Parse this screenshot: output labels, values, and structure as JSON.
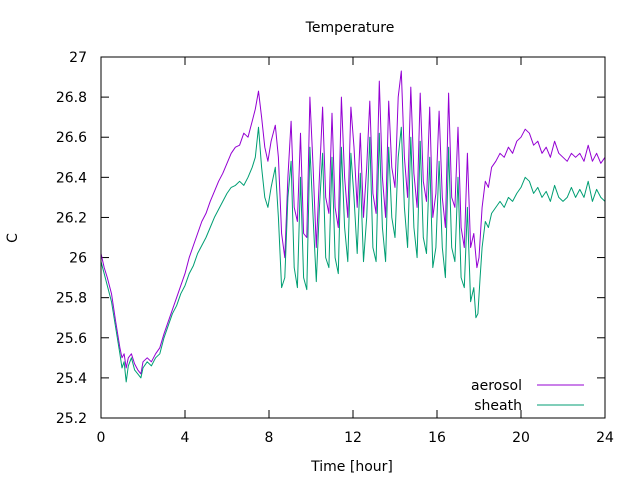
{
  "chart_data": {
    "type": "line",
    "title": "Temperature",
    "xlabel": "Time [hour]",
    "ylabel": "C",
    "xlim": [
      0,
      24
    ],
    "ylim": [
      25.2,
      27
    ],
    "xticks": [
      0,
      4,
      8,
      12,
      16,
      20,
      24
    ],
    "yticks": [
      25.2,
      25.4,
      25.6,
      25.8,
      26,
      26.2,
      26.4,
      26.6,
      26.8,
      27
    ],
    "ytick_labels": [
      "25.2",
      "25.4",
      "25.6",
      "25.8",
      "26",
      "26.2",
      "26.4",
      "26.6",
      "26.8",
      "27"
    ],
    "grid": false,
    "legend_position": "bottom-right",
    "series": [
      {
        "name": "aerosol",
        "color": "#9400d3",
        "points": [
          [
            0,
            26.02
          ],
          [
            0.15,
            25.95
          ],
          [
            0.3,
            25.9
          ],
          [
            0.5,
            25.82
          ],
          [
            0.7,
            25.68
          ],
          [
            0.9,
            25.55
          ],
          [
            1.0,
            25.5
          ],
          [
            1.1,
            25.52
          ],
          [
            1.2,
            25.45
          ],
          [
            1.3,
            25.5
          ],
          [
            1.45,
            25.52
          ],
          [
            1.6,
            25.47
          ],
          [
            1.75,
            25.44
          ],
          [
            1.9,
            25.42
          ],
          [
            2.0,
            25.48
          ],
          [
            2.2,
            25.5
          ],
          [
            2.4,
            25.48
          ],
          [
            2.6,
            25.52
          ],
          [
            2.8,
            25.55
          ],
          [
            3.0,
            25.62
          ],
          [
            3.2,
            25.68
          ],
          [
            3.4,
            25.74
          ],
          [
            3.6,
            25.8
          ],
          [
            3.8,
            25.86
          ],
          [
            4.0,
            25.92
          ],
          [
            4.2,
            26.0
          ],
          [
            4.4,
            26.06
          ],
          [
            4.6,
            26.12
          ],
          [
            4.8,
            26.18
          ],
          [
            5.0,
            26.22
          ],
          [
            5.2,
            26.28
          ],
          [
            5.4,
            26.33
          ],
          [
            5.6,
            26.38
          ],
          [
            5.8,
            26.42
          ],
          [
            6.0,
            26.47
          ],
          [
            6.2,
            26.52
          ],
          [
            6.4,
            26.55
          ],
          [
            6.6,
            26.56
          ],
          [
            6.8,
            26.62
          ],
          [
            7.0,
            26.6
          ],
          [
            7.2,
            26.68
          ],
          [
            7.35,
            26.74
          ],
          [
            7.5,
            26.83
          ],
          [
            7.65,
            26.7
          ],
          [
            7.8,
            26.55
          ],
          [
            7.95,
            26.48
          ],
          [
            8.1,
            26.58
          ],
          [
            8.3,
            26.66
          ],
          [
            8.45,
            26.5
          ],
          [
            8.6,
            26.12
          ],
          [
            8.75,
            26.0
          ],
          [
            8.9,
            26.4
          ],
          [
            9.05,
            26.68
          ],
          [
            9.2,
            26.25
          ],
          [
            9.35,
            26.18
          ],
          [
            9.5,
            26.62
          ],
          [
            9.65,
            26.12
          ],
          [
            9.8,
            26.1
          ],
          [
            9.95,
            26.8
          ],
          [
            10.1,
            26.45
          ],
          [
            10.25,
            26.05
          ],
          [
            10.4,
            26.4
          ],
          [
            10.55,
            26.75
          ],
          [
            10.7,
            26.3
          ],
          [
            10.85,
            26.22
          ],
          [
            11.0,
            26.72
          ],
          [
            11.15,
            26.25
          ],
          [
            11.3,
            26.15
          ],
          [
            11.45,
            26.8
          ],
          [
            11.6,
            26.4
          ],
          [
            11.75,
            26.2
          ],
          [
            11.9,
            26.75
          ],
          [
            12.05,
            26.55
          ],
          [
            12.2,
            26.25
          ],
          [
            12.35,
            26.62
          ],
          [
            12.5,
            26.2
          ],
          [
            12.65,
            26.45
          ],
          [
            12.8,
            26.78
          ],
          [
            12.95,
            26.32
          ],
          [
            13.1,
            26.22
          ],
          [
            13.25,
            26.88
          ],
          [
            13.4,
            26.4
          ],
          [
            13.55,
            26.2
          ],
          [
            13.7,
            26.78
          ],
          [
            13.85,
            26.45
          ],
          [
            14.0,
            26.35
          ],
          [
            14.15,
            26.8
          ],
          [
            14.3,
            26.93
          ],
          [
            14.45,
            26.5
          ],
          [
            14.6,
            26.3
          ],
          [
            14.75,
            26.85
          ],
          [
            14.9,
            26.42
          ],
          [
            15.05,
            26.25
          ],
          [
            15.2,
            26.82
          ],
          [
            15.35,
            26.38
          ],
          [
            15.5,
            26.28
          ],
          [
            15.65,
            26.75
          ],
          [
            15.8,
            26.2
          ],
          [
            15.95,
            26.32
          ],
          [
            16.1,
            26.73
          ],
          [
            16.25,
            26.3
          ],
          [
            16.4,
            26.15
          ],
          [
            16.55,
            26.82
          ],
          [
            16.7,
            26.3
          ],
          [
            16.85,
            26.25
          ],
          [
            17.0,
            26.65
          ],
          [
            17.15,
            26.15
          ],
          [
            17.3,
            26.05
          ],
          [
            17.45,
            26.52
          ],
          [
            17.6,
            26.05
          ],
          [
            17.75,
            26.12
          ],
          [
            17.9,
            25.95
          ],
          [
            18.0,
            26.0
          ],
          [
            18.15,
            26.25
          ],
          [
            18.3,
            26.38
          ],
          [
            18.45,
            26.35
          ],
          [
            18.6,
            26.45
          ],
          [
            18.8,
            26.48
          ],
          [
            19.0,
            26.52
          ],
          [
            19.2,
            26.5
          ],
          [
            19.4,
            26.55
          ],
          [
            19.6,
            26.52
          ],
          [
            19.8,
            26.58
          ],
          [
            20.0,
            26.6
          ],
          [
            20.2,
            26.64
          ],
          [
            20.4,
            26.62
          ],
          [
            20.6,
            26.56
          ],
          [
            20.8,
            26.58
          ],
          [
            21.0,
            26.52
          ],
          [
            21.2,
            26.55
          ],
          [
            21.4,
            26.5
          ],
          [
            21.6,
            26.58
          ],
          [
            21.8,
            26.52
          ],
          [
            22.0,
            26.5
          ],
          [
            22.2,
            26.48
          ],
          [
            22.4,
            26.52
          ],
          [
            22.6,
            26.5
          ],
          [
            22.8,
            26.52
          ],
          [
            23.0,
            26.48
          ],
          [
            23.2,
            26.56
          ],
          [
            23.4,
            26.48
          ],
          [
            23.6,
            26.52
          ],
          [
            23.8,
            26.47
          ],
          [
            24.0,
            26.5
          ]
        ]
      },
      {
        "name": "sheath",
        "color": "#009e73",
        "points": [
          [
            0,
            25.98
          ],
          [
            0.15,
            25.92
          ],
          [
            0.3,
            25.86
          ],
          [
            0.5,
            25.78
          ],
          [
            0.7,
            25.65
          ],
          [
            0.9,
            25.52
          ],
          [
            1.0,
            25.45
          ],
          [
            1.1,
            25.48
          ],
          [
            1.2,
            25.38
          ],
          [
            1.3,
            25.46
          ],
          [
            1.45,
            25.5
          ],
          [
            1.6,
            25.44
          ],
          [
            1.75,
            25.42
          ],
          [
            1.9,
            25.4
          ],
          [
            2.0,
            25.45
          ],
          [
            2.2,
            25.48
          ],
          [
            2.4,
            25.46
          ],
          [
            2.6,
            25.5
          ],
          [
            2.8,
            25.52
          ],
          [
            3.0,
            25.6
          ],
          [
            3.2,
            25.66
          ],
          [
            3.4,
            25.72
          ],
          [
            3.6,
            25.76
          ],
          [
            3.8,
            25.82
          ],
          [
            4.0,
            25.86
          ],
          [
            4.2,
            25.92
          ],
          [
            4.4,
            25.96
          ],
          [
            4.6,
            26.02
          ],
          [
            4.8,
            26.06
          ],
          [
            5.0,
            26.1
          ],
          [
            5.2,
            26.15
          ],
          [
            5.4,
            26.2
          ],
          [
            5.6,
            26.24
          ],
          [
            5.8,
            26.28
          ],
          [
            6.0,
            26.32
          ],
          [
            6.2,
            26.35
          ],
          [
            6.4,
            26.36
          ],
          [
            6.6,
            26.38
          ],
          [
            6.8,
            26.36
          ],
          [
            7.0,
            26.4
          ],
          [
            7.2,
            26.45
          ],
          [
            7.35,
            26.5
          ],
          [
            7.5,
            26.65
          ],
          [
            7.65,
            26.45
          ],
          [
            7.8,
            26.3
          ],
          [
            7.95,
            26.25
          ],
          [
            8.1,
            26.35
          ],
          [
            8.3,
            26.45
          ],
          [
            8.45,
            26.2
          ],
          [
            8.6,
            25.85
          ],
          [
            8.75,
            25.9
          ],
          [
            8.9,
            26.3
          ],
          [
            9.05,
            26.48
          ],
          [
            9.2,
            25.95
          ],
          [
            9.35,
            25.85
          ],
          [
            9.5,
            26.4
          ],
          [
            9.65,
            25.9
          ],
          [
            9.8,
            25.84
          ],
          [
            9.95,
            26.55
          ],
          [
            10.1,
            26.2
          ],
          [
            10.25,
            25.88
          ],
          [
            10.4,
            26.25
          ],
          [
            10.55,
            26.52
          ],
          [
            10.7,
            26.0
          ],
          [
            10.85,
            25.95
          ],
          [
            11.0,
            26.5
          ],
          [
            11.15,
            26.0
          ],
          [
            11.3,
            25.92
          ],
          [
            11.45,
            26.55
          ],
          [
            11.6,
            26.15
          ],
          [
            11.75,
            25.98
          ],
          [
            11.9,
            26.52
          ],
          [
            12.05,
            26.3
          ],
          [
            12.2,
            26.02
          ],
          [
            12.35,
            26.42
          ],
          [
            12.5,
            25.98
          ],
          [
            12.65,
            26.2
          ],
          [
            12.8,
            26.6
          ],
          [
            12.95,
            26.05
          ],
          [
            13.1,
            25.98
          ],
          [
            13.25,
            26.62
          ],
          [
            13.4,
            26.15
          ],
          [
            13.55,
            25.98
          ],
          [
            13.7,
            26.55
          ],
          [
            13.85,
            26.2
          ],
          [
            14.0,
            26.1
          ],
          [
            14.15,
            26.5
          ],
          [
            14.3,
            26.65
          ],
          [
            14.45,
            26.25
          ],
          [
            14.6,
            26.05
          ],
          [
            14.75,
            26.6
          ],
          [
            14.9,
            26.15
          ],
          [
            15.05,
            26.0
          ],
          [
            15.2,
            26.58
          ],
          [
            15.35,
            26.1
          ],
          [
            15.5,
            26.02
          ],
          [
            15.65,
            26.5
          ],
          [
            15.8,
            25.95
          ],
          [
            15.95,
            26.05
          ],
          [
            16.1,
            26.48
          ],
          [
            16.25,
            26.05
          ],
          [
            16.4,
            25.9
          ],
          [
            16.55,
            26.55
          ],
          [
            16.7,
            26.05
          ],
          [
            16.85,
            25.98
          ],
          [
            17.0,
            26.4
          ],
          [
            17.15,
            25.9
          ],
          [
            17.3,
            25.85
          ],
          [
            17.45,
            26.25
          ],
          [
            17.6,
            25.78
          ],
          [
            17.75,
            25.85
          ],
          [
            17.85,
            25.7
          ],
          [
            17.95,
            25.72
          ],
          [
            18.05,
            25.9
          ],
          [
            18.15,
            26.05
          ],
          [
            18.3,
            26.18
          ],
          [
            18.45,
            26.15
          ],
          [
            18.6,
            26.22
          ],
          [
            18.8,
            26.25
          ],
          [
            19.0,
            26.28
          ],
          [
            19.2,
            26.25
          ],
          [
            19.4,
            26.3
          ],
          [
            19.6,
            26.28
          ],
          [
            19.8,
            26.32
          ],
          [
            20.0,
            26.35
          ],
          [
            20.2,
            26.4
          ],
          [
            20.4,
            26.38
          ],
          [
            20.6,
            26.32
          ],
          [
            20.8,
            26.35
          ],
          [
            21.0,
            26.3
          ],
          [
            21.2,
            26.33
          ],
          [
            21.4,
            26.28
          ],
          [
            21.6,
            26.36
          ],
          [
            21.8,
            26.3
          ],
          [
            22.0,
            26.28
          ],
          [
            22.2,
            26.3
          ],
          [
            22.4,
            26.35
          ],
          [
            22.6,
            26.3
          ],
          [
            22.8,
            26.34
          ],
          [
            23.0,
            26.3
          ],
          [
            23.2,
            26.38
          ],
          [
            23.4,
            26.28
          ],
          [
            23.6,
            26.34
          ],
          [
            23.8,
            26.3
          ],
          [
            24.0,
            26.28
          ]
        ]
      }
    ]
  }
}
